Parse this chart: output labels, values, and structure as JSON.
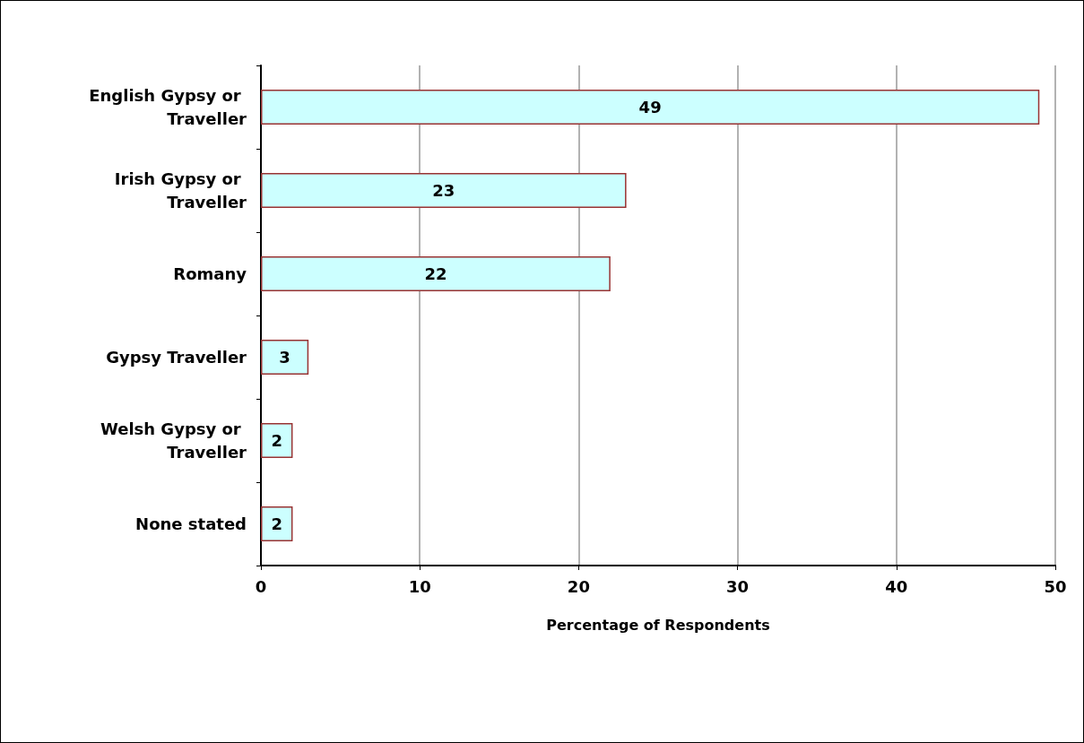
{
  "chart_data": {
    "type": "bar",
    "orientation": "horizontal",
    "xlabel": "Percentage of Respondents",
    "categories": [
      "English Gypsy or Traveller",
      "Irish Gypsy or Traveller",
      "Romany",
      "Gypsy Traveller",
      "Welsh Gypsy or Traveller",
      "None stated"
    ],
    "values": [
      49,
      23,
      22,
      3,
      2,
      2
    ],
    "color": "#ccffff",
    "xlim": [
      0,
      50
    ],
    "xticks": [
      0,
      10,
      20,
      30,
      40,
      50
    ],
    "grid": "x",
    "data_labels": true
  }
}
